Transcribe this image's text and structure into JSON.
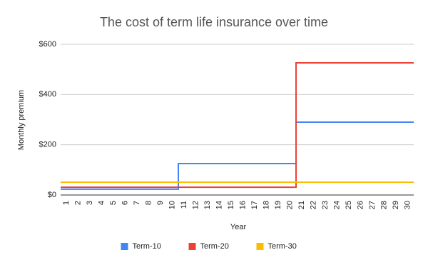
{
  "chart_data": {
    "type": "line",
    "step": true,
    "title": "The cost of term life insurance over time",
    "x_label": "Year",
    "y_label": "Monthly premium",
    "categories": [
      "1",
      "2",
      "3",
      "4",
      "5",
      "6",
      "7",
      "8",
      "9",
      "10",
      "11",
      "12",
      "13",
      "14",
      "15",
      "16",
      "17",
      "18",
      "19",
      "20",
      "21",
      "22",
      "23",
      "24",
      "25",
      "26",
      "27",
      "28",
      "29",
      "30"
    ],
    "series": [
      {
        "name": "Term-10",
        "color": "#4285f4",
        "values": [
          23,
          23,
          23,
          23,
          23,
          23,
          23,
          23,
          23,
          23,
          125,
          125,
          125,
          125,
          125,
          125,
          125,
          125,
          125,
          125,
          290,
          290,
          290,
          290,
          290,
          290,
          290,
          290,
          290,
          290
        ]
      },
      {
        "name": "Term-20",
        "color": "#ea4335",
        "values": [
          31,
          31,
          31,
          31,
          31,
          31,
          31,
          31,
          31,
          31,
          31,
          31,
          31,
          31,
          31,
          31,
          31,
          31,
          31,
          31,
          526,
          526,
          526,
          526,
          526,
          526,
          526,
          526,
          526,
          526
        ]
      },
      {
        "name": "Term-30",
        "color": "#fbbc04",
        "values": [
          51,
          51,
          51,
          51,
          51,
          51,
          51,
          51,
          51,
          51,
          51,
          51,
          51,
          51,
          51,
          51,
          51,
          51,
          51,
          51,
          51,
          51,
          51,
          51,
          51,
          51,
          51,
          51,
          51,
          51
        ]
      }
    ],
    "ylim": [
      0,
      600
    ],
    "yticks": [
      {
        "value": 0,
        "label": "$0"
      },
      {
        "value": 200,
        "label": "$200"
      },
      {
        "value": 400,
        "label": "$400"
      },
      {
        "value": 600,
        "label": "$600"
      }
    ],
    "grid": true,
    "legend": "bottom"
  }
}
